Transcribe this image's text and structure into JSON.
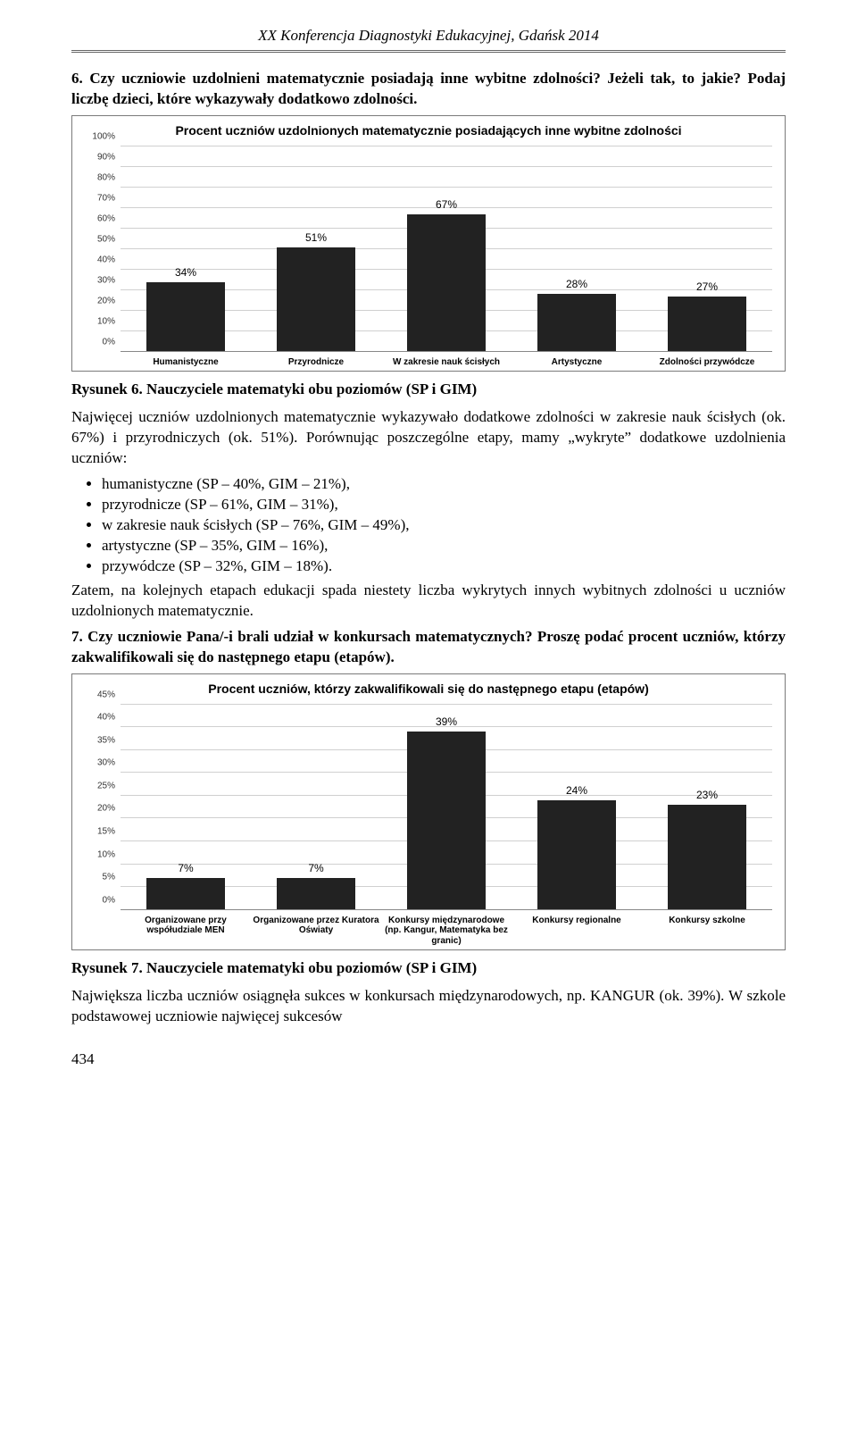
{
  "running_head": "XX Konferencja Diagnostyki Edukacyjnej, Gdańsk 2014",
  "q6_heading": "6. Czy uczniowie uzdolnieni matematycznie posiadają inne wybitne zdolności? Jeżeli tak, to jakie? Podaj liczbę dzieci, które wykazywały dodatkowo zdolności.",
  "chart1": {
    "type": "bar",
    "title": "Procent uczniów uzdolnionych matematycznie posiadających inne wybitne zdolności",
    "categories": [
      "Humanistyczne",
      "Przyrodnicze",
      "W zakresie nauk ścisłych",
      "Artystyczne",
      "Zdolności przywódcze"
    ],
    "values": [
      34,
      51,
      67,
      28,
      27
    ],
    "value_labels": [
      "34%",
      "51%",
      "67%",
      "28%",
      "27%"
    ],
    "ylim": [
      0,
      100
    ],
    "yticks": [
      0,
      10,
      20,
      30,
      40,
      50,
      60,
      70,
      80,
      90,
      100
    ],
    "ytick_labels": [
      "0%",
      "10%",
      "20%",
      "30%",
      "40%",
      "50%",
      "60%",
      "70%",
      "80%",
      "90%",
      "100%"
    ],
    "bar_color": "#222222",
    "grid_color": "#d0d0d0",
    "background_color": "#ffffff",
    "title_fontsize": 14,
    "label_fontsize": 10
  },
  "caption6a": "Rysunek 6.",
  "caption6b": " Nauczyciele matematyki obu poziomów (SP i GIM)",
  "para6": "Najwięcej uczniów uzdolnionych matematycznie wykazywało dodatkowe zdolności w zakresie nauk ścisłych (ok. 67%) i przyrodniczych (ok. 51%). Porównując poszczególne etapy, mamy „wykryte” dodatkowe uzdolnienia uczniów:",
  "bullets": [
    "humanistyczne (SP – 40%, GIM – 21%),",
    "przyrodnicze (SP – 61%, GIM – 31%),",
    "w zakresie nauk ścisłych (SP – 76%, GIM – 49%),",
    "artystyczne (SP – 35%, GIM – 16%),",
    "przywódcze (SP – 32%, GIM – 18%)."
  ],
  "para6b": "Zatem, na kolejnych etapach edukacji spada niestety liczba wykrytych innych wybitnych zdolności u uczniów uzdolnionych matematycznie.",
  "q7_heading": "7. Czy uczniowie Pana/-i brali udział w konkursach matematycznych? Proszę podać procent uczniów, którzy zakwalifikowali się do następnego etapu (etapów).",
  "chart2": {
    "type": "bar",
    "title": "Procent uczniów, którzy zakwalifikowali się do następnego etapu (etapów)",
    "categories": [
      "Organizowane przy współudziale MEN",
      "Organizowane przez Kuratora Oświaty",
      "Konkursy międzynarodowe (np. Kangur, Matematyka bez granic)",
      "Konkursy regionalne",
      "Konkursy szkolne"
    ],
    "values": [
      7,
      7,
      39,
      24,
      23
    ],
    "value_labels": [
      "7%",
      "7%",
      "39%",
      "24%",
      "23%"
    ],
    "ylim": [
      0,
      45
    ],
    "yticks": [
      0,
      5,
      10,
      15,
      20,
      25,
      30,
      35,
      40,
      45
    ],
    "ytick_labels": [
      "0%",
      "5%",
      "10%",
      "15%",
      "20%",
      "25%",
      "30%",
      "35%",
      "40%",
      "45%"
    ],
    "bar_color": "#222222",
    "grid_color": "#d0d0d0",
    "background_color": "#ffffff",
    "title_fontsize": 14,
    "label_fontsize": 10
  },
  "caption7a": "Rysunek 7.",
  "caption7b": " Nauczyciele matematyki obu poziomów (SP i GIM)",
  "para7": "Największa liczba uczniów osiągnęła sukces w konkursach międzynarodowych, np. KANGUR (ok. 39%). W szkole podstawowej uczniowie najwięcej sukcesów",
  "page_number": "434"
}
